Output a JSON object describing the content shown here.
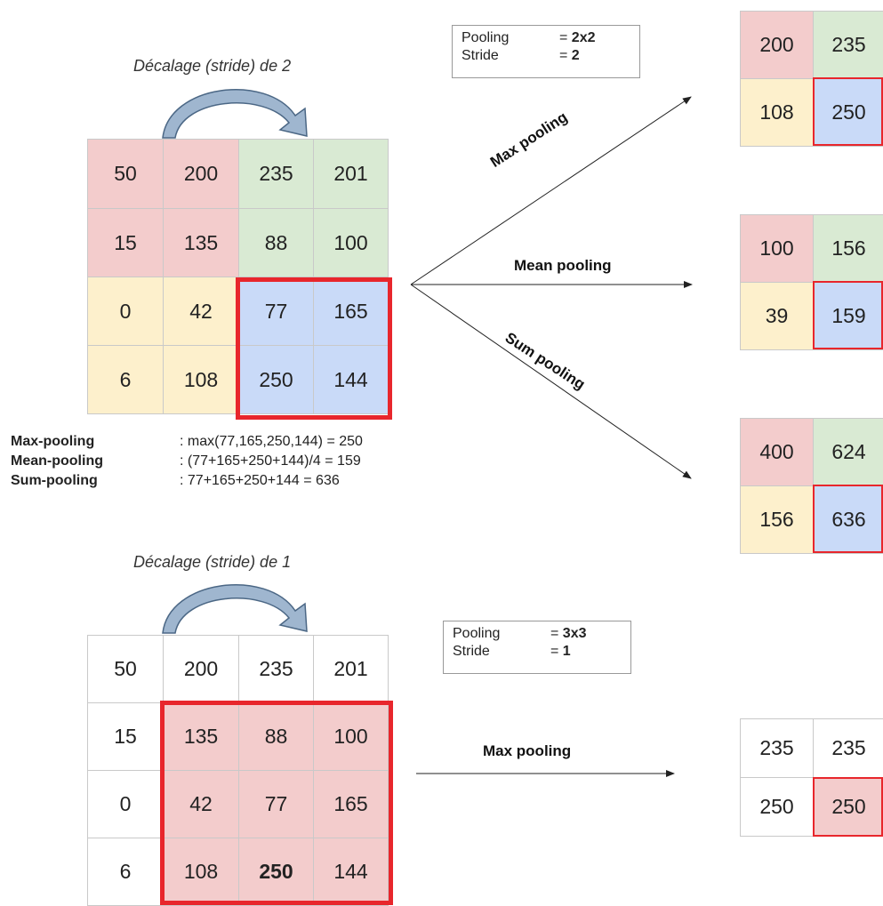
{
  "top": {
    "caption": "Décalage (stride) de 2",
    "info": {
      "pooling_key": "Pooling",
      "pooling_val": "2x2",
      "stride_key": "Stride",
      "stride_val": "2"
    },
    "input": [
      [
        "50",
        "200",
        "235",
        "201"
      ],
      [
        "15",
        "135",
        "88",
        "100"
      ],
      [
        "0",
        "42",
        "77",
        "165"
      ],
      [
        "6",
        "108",
        "250",
        "144"
      ]
    ],
    "formulas": [
      {
        "label": "Max-pooling",
        "expr": ": max(77,165,250,144) = 250"
      },
      {
        "label": "Mean-pooling",
        "expr": ": (77+165+250+144)/4 = 159"
      },
      {
        "label": "Sum-pooling",
        "expr": ": 77+165+250+144 = 636"
      }
    ],
    "arrows": {
      "max": "Max pooling",
      "mean": "Mean pooling",
      "sum": "Sum pooling"
    },
    "outputs": {
      "max": [
        [
          "200",
          "235"
        ],
        [
          "108",
          "250"
        ]
      ],
      "mean": [
        [
          "100",
          "156"
        ],
        [
          "39",
          "159"
        ]
      ],
      "sum": [
        [
          "400",
          "624"
        ],
        [
          "156",
          "636"
        ]
      ]
    }
  },
  "bottom": {
    "caption": "Décalage (stride) de 1",
    "info": {
      "pooling_key": "Pooling",
      "pooling_val": "3x3",
      "stride_key": "Stride",
      "stride_val": "1"
    },
    "input": [
      [
        "50",
        "200",
        "235",
        "201"
      ],
      [
        "15",
        "135",
        "88",
        "100"
      ],
      [
        "0",
        "42",
        "77",
        "165"
      ],
      [
        "6",
        "108",
        "250",
        "144"
      ]
    ],
    "arrow": "Max pooling",
    "output": [
      [
        "235",
        "235"
      ],
      [
        "250",
        "250"
      ]
    ]
  },
  "colors": {
    "pink": "#f3cccc",
    "green": "#d9ead3",
    "yellow": "#fdf0cc",
    "blue": "#c9daf8",
    "red": "#e8262c",
    "arrow_fill": "#9fb6cf"
  }
}
